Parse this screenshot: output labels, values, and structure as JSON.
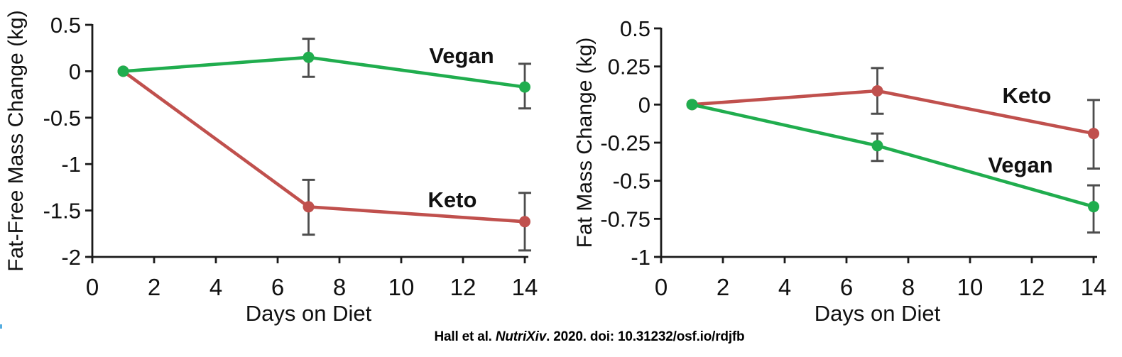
{
  "figure": {
    "caption": {
      "part1": "Hall et al. ",
      "part2_italic": "NutriXiv",
      "part3": ". 2020. doi: 10.31232/osf.io/rdjfb"
    },
    "colors": {
      "vegan_line": "#20ad4e",
      "vegan_label": "#15c24f",
      "keto_line": "#c0504d",
      "keto_label": "#e7182c",
      "error_bar": "#4d4d4d",
      "axis": "#1a1a1a",
      "background": "#ffffff",
      "stray_mark_blue": "#55ade0"
    }
  },
  "chart_data": [
    {
      "type": "line",
      "title": "",
      "xlabel": "Days on Diet",
      "ylabel": "Fat-Free Mass Change (kg)",
      "xlim": [
        0,
        14
      ],
      "ylim": [
        -2,
        0.5
      ],
      "xticks": [
        0,
        2,
        4,
        6,
        8,
        10,
        12,
        14
      ],
      "yticks": [
        0.5,
        0,
        -0.5,
        -1,
        -1.5,
        -2
      ],
      "ytick_labels": [
        "0.5",
        "0",
        "-0.5",
        "-1",
        "-1.5",
        "-2"
      ],
      "grid": false,
      "legend_style": "inline-labels",
      "x_days": [
        1,
        7,
        14
      ],
      "series": [
        {
          "name": "Keto",
          "color_key": "keto",
          "values": [
            0,
            -1.46,
            -1.62
          ],
          "err_upper": [
            null,
            -1.17,
            -1.31
          ],
          "err_lower": [
            null,
            -1.76,
            -1.93
          ]
        },
        {
          "name": "Vegan",
          "color_key": "vegan",
          "values": [
            0,
            0.15,
            -0.17
          ],
          "err_upper": [
            null,
            0.35,
            0.08
          ],
          "err_lower": [
            null,
            -0.06,
            -0.4
          ]
        }
      ]
    },
    {
      "type": "line",
      "title": "",
      "xlabel": "Days on Diet",
      "ylabel": "Fat Mass Change (kg)",
      "xlim": [
        0,
        14
      ],
      "ylim": [
        -1,
        0.5
      ],
      "xticks": [
        0,
        2,
        4,
        6,
        8,
        10,
        12,
        14
      ],
      "yticks": [
        0.5,
        0.25,
        0,
        -0.25,
        -0.5,
        -0.75,
        -1
      ],
      "ytick_labels": [
        "0.5",
        "0.25",
        "0",
        "-0.25",
        "-0.5",
        "-0.75",
        "-1"
      ],
      "grid": false,
      "legend_style": "inline-labels",
      "x_days": [
        1,
        7,
        14
      ],
      "series": [
        {
          "name": "Keto",
          "color_key": "keto",
          "values": [
            0,
            0.09,
            -0.19
          ],
          "err_upper": [
            null,
            0.24,
            0.03
          ],
          "err_lower": [
            null,
            -0.06,
            -0.42
          ]
        },
        {
          "name": "Vegan",
          "color_key": "vegan",
          "values": [
            0,
            -0.27,
            -0.67
          ],
          "err_upper": [
            null,
            -0.19,
            -0.53
          ],
          "err_lower": [
            null,
            -0.37,
            -0.84
          ]
        }
      ]
    }
  ]
}
